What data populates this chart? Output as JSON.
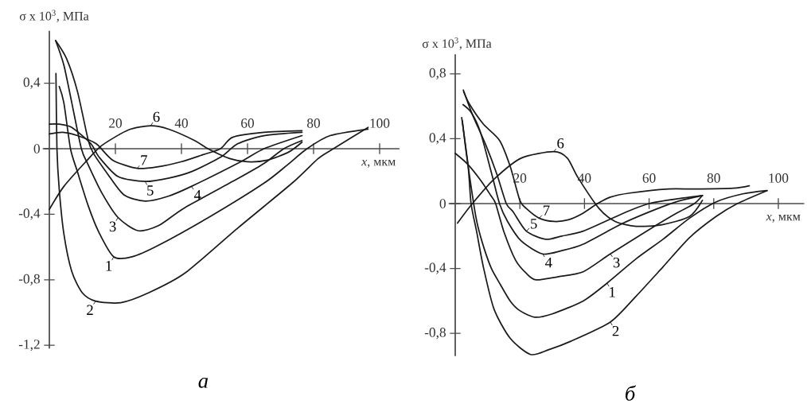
{
  "chart_data": [
    {
      "type": "line",
      "title": "а",
      "xlabel": "*x*, мкм",
      "ylabel": "σ x 10$^{3}$, МПа",
      "xlim": [
        -2,
        106
      ],
      "ylim": [
        -1.22,
        0.72
      ],
      "xticks": [
        20,
        40,
        60,
        80,
        100
      ],
      "yticks": [
        {
          "value": 0.4,
          "label": "0,4"
        },
        0,
        {
          "value": -0.4,
          "label": "-0,4"
        },
        {
          "value": -0.8,
          "label": "-0,8"
        },
        {
          "value": -1.2,
          "label": "-1,2"
        }
      ],
      "marker": "none",
      "line_style": "solid",
      "series": [
        {
          "name": "1",
          "color": "#1a1a1a",
          "x": [
            3,
            4.4,
            6.4,
            8.5,
            11.8,
            15,
            19.5,
            25,
            33,
            49,
            65,
            72,
            78,
            85,
            96.5
          ],
          "values": [
            0.38,
            0.28,
            0,
            -0.14,
            -0.35,
            -0.51,
            -0.66,
            -0.66,
            -0.59,
            -0.41,
            -0.21,
            -0.1,
            0,
            0.08,
            0.12
          ]
        },
        {
          "name": "2",
          "color": "#1a1a1a",
          "x": [
            2,
            2.3,
            3,
            4.4,
            6.8,
            10,
            14,
            21.6,
            30,
            41,
            57.3,
            73.5,
            81.4,
            86,
            96.5
          ],
          "values": [
            0.46,
            0,
            -0.25,
            -0.52,
            -0.75,
            -0.88,
            -0.93,
            -0.94,
            -0.88,
            -0.76,
            -0.48,
            -0.21,
            -0.06,
            0,
            0.13
          ]
        },
        {
          "name": "3",
          "color": "#1a1a1a",
          "x": [
            1.9,
            4.4,
            6.8,
            9.7,
            11.8,
            15.9,
            20.8,
            26.8,
            33,
            41,
            57.3,
            65,
            71,
            76.5
          ],
          "values": [
            0.66,
            0.51,
            0.28,
            0,
            -0.1,
            -0.27,
            -0.42,
            -0.5,
            -0.47,
            -0.36,
            -0.18,
            -0.09,
            0,
            0.05
          ]
        },
        {
          "name": "4",
          "color": "#1a1a1a",
          "x": [
            1.9,
            5.2,
            8.5,
            11.8,
            13.4,
            17.5,
            22.5,
            29,
            36,
            43,
            57.9,
            65,
            76.5
          ],
          "values": [
            0.66,
            0.55,
            0.35,
            0.05,
            -0.03,
            -0.15,
            -0.28,
            -0.32,
            -0.29,
            -0.23,
            -0.08,
            0,
            0.08
          ]
        },
        {
          "name": "5",
          "color": "#1a1a1a",
          "x": [
            0,
            3,
            6.8,
            12.6,
            15,
            20.8,
            29,
            36,
            43,
            52,
            57,
            65,
            76.5
          ],
          "values": [
            0.15,
            0.15,
            0.13,
            0.03,
            -0.05,
            -0.17,
            -0.2,
            -0.18,
            -0.14,
            -0.05,
            0.03,
            0.08,
            0.1
          ]
        },
        {
          "name": "6",
          "color": "#1a1a1a",
          "x": [
            0,
            4.4,
            11,
            15.9,
            24,
            30.7,
            36,
            44,
            48,
            54.6,
            60,
            66,
            72.5,
            76.5
          ],
          "values": [
            -0.37,
            -0.23,
            -0.08,
            0.02,
            0.115,
            0.14,
            0.12,
            0.05,
            0,
            -0.06,
            -0.08,
            -0.07,
            -0.02,
            0.04
          ]
        },
        {
          "name": "7",
          "color": "#1a1a1a",
          "x": [
            0,
            4,
            8.5,
            14.2,
            19.2,
            26.6,
            33,
            39.8,
            46,
            51.8,
            55.5,
            65,
            76.5
          ],
          "values": [
            0.09,
            0.1,
            0.08,
            0.03,
            -0.07,
            -0.12,
            -0.11,
            -0.08,
            -0.04,
            0,
            0.07,
            0.1,
            0.11
          ]
        }
      ]
    },
    {
      "type": "line",
      "title": "б",
      "xlabel": "*x*, мкм",
      "ylabel": "σ x 10$^{3}$, МПа",
      "xlim": [
        -2,
        108
      ],
      "ylim": [
        -0.94,
        0.92
      ],
      "xticks": [
        20,
        40,
        60,
        80,
        100
      ],
      "yticks": [
        {
          "value": 0.8,
          "label": "0,8"
        },
        {
          "value": 0.4,
          "label": "0,4"
        },
        0,
        {
          "value": -0.4,
          "label": "-0,4"
        },
        {
          "value": -0.8,
          "label": "-0,8"
        }
      ],
      "marker": "none",
      "line_style": "solid",
      "series": [
        {
          "name": "1",
          "color": "#1a1a1a",
          "x": [
            2.2,
            3.5,
            5.7,
            7,
            9,
            11.2,
            14,
            17,
            20,
            24.6,
            30,
            39.6,
            47,
            56,
            64.3,
            72.5,
            80.7,
            89,
            96.5
          ],
          "values": [
            0.51,
            0.3,
            0,
            -0.14,
            -0.28,
            -0.4,
            -0.5,
            -0.6,
            -0.66,
            -0.7,
            -0.68,
            -0.6,
            -0.49,
            -0.34,
            -0.22,
            -0.09,
            0.01,
            0.06,
            0.08
          ]
        },
        {
          "name": "2",
          "color": "#1a1a1a",
          "x": [
            2,
            4,
            4.9,
            6.6,
            8.7,
            12,
            17,
            23.3,
            29,
            35.6,
            48,
            56,
            64.3,
            72.5,
            80.7,
            87.3,
            96.5
          ],
          "values": [
            0.53,
            0.23,
            0,
            -0.17,
            -0.39,
            -0.65,
            -0.83,
            -0.93,
            -0.9,
            -0.85,
            -0.73,
            -0.57,
            -0.39,
            -0.21,
            -0.08,
            0,
            0.08
          ]
        },
        {
          "name": "3",
          "color": "#1a1a1a",
          "x": [
            0,
            4,
            8,
            11,
            12.5,
            15,
            18.7,
            22,
            25,
            32,
            39.6,
            48,
            60,
            68.4,
            74,
            76.5
          ],
          "values": [
            0.31,
            0.24,
            0.14,
            0.05,
            0,
            -0.17,
            -0.35,
            -0.43,
            -0.47,
            -0.45,
            -0.42,
            -0.31,
            -0.16,
            -0.06,
            0,
            0.05
          ]
        },
        {
          "name": "4",
          "color": "#1a1a1a",
          "x": [
            2.4,
            5,
            7.8,
            11.2,
            13.7,
            16.2,
            20.4,
            27,
            33,
            39.6,
            52,
            64,
            70,
            76.5
          ],
          "values": [
            0.61,
            0.56,
            0.44,
            0.19,
            0,
            -0.11,
            -0.23,
            -0.31,
            -0.29,
            -0.25,
            -0.12,
            -0.02,
            0.02,
            0.05
          ]
        },
        {
          "name": "5",
          "color": "#1a1a1a",
          "x": [
            2.5,
            5.3,
            9.5,
            12.9,
            15.8,
            17.9,
            22,
            28,
            33,
            39.6,
            52,
            60,
            72.5,
            76.5
          ],
          "values": [
            0.7,
            0.55,
            0.36,
            0.18,
            0,
            -0.05,
            -0.17,
            -0.22,
            -0.2,
            -0.17,
            -0.06,
            0,
            0.04,
            0.05
          ]
        },
        {
          "name": "6",
          "color": "#1a1a1a",
          "x": [
            0.7,
            5.3,
            12,
            20.4,
            30.5,
            34.7,
            38,
            44.5,
            49.5,
            56,
            64,
            72.5,
            76.5
          ],
          "values": [
            -0.12,
            0,
            0.15,
            0.28,
            0.32,
            0.28,
            0.16,
            -0.03,
            -0.11,
            -0.14,
            -0.13,
            -0.08,
            0.02
          ]
        },
        {
          "name": "7",
          "color": "#1a1a1a",
          "x": [
            2.6,
            4.5,
            8.7,
            13.7,
            17,
            20,
            22,
            26,
            30.5,
            35,
            39.5,
            44,
            48,
            54,
            66,
            74,
            86,
            91
          ],
          "values": [
            0.69,
            0.61,
            0.49,
            0.39,
            0.23,
            0.02,
            -0.03,
            -0.09,
            -0.11,
            -0.1,
            -0.06,
            0,
            0.04,
            0.065,
            0.09,
            0.09,
            0.095,
            0.11
          ]
        }
      ]
    }
  ]
}
